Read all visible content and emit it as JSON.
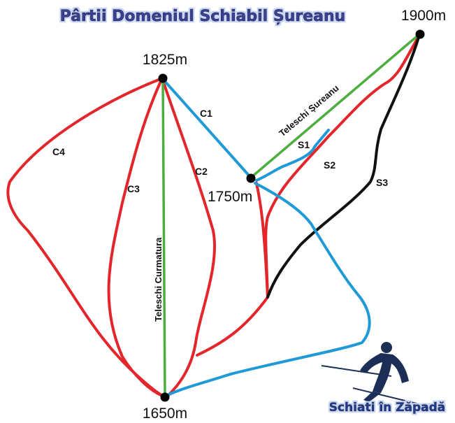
{
  "title": "Pârtii Domeniul Schiabil Șureanu",
  "colors": {
    "title_fill": "#3a3f8f",
    "title_glow": "#c9d6f2",
    "red_slope": "#e3262b",
    "blue_slope": "#1f9ad6",
    "black_slope": "#111111",
    "lift": "#4cae3f"
  },
  "stations": {
    "top_left": "1825m",
    "top_right": "1900m",
    "middle": "1750m",
    "bottom": "1650m"
  },
  "slopes": {
    "c1": "C1",
    "c2": "C2",
    "c3": "C3",
    "c4": "C4",
    "s1": "S1",
    "s2": "S2",
    "s3": "S3"
  },
  "lifts": {
    "curmatura": "Teleschi Curmatura",
    "sureanu": "Teleschi Șureanu"
  },
  "brand": {
    "text": "Schiati în Zăpadă",
    "icon": "skier-icon"
  }
}
